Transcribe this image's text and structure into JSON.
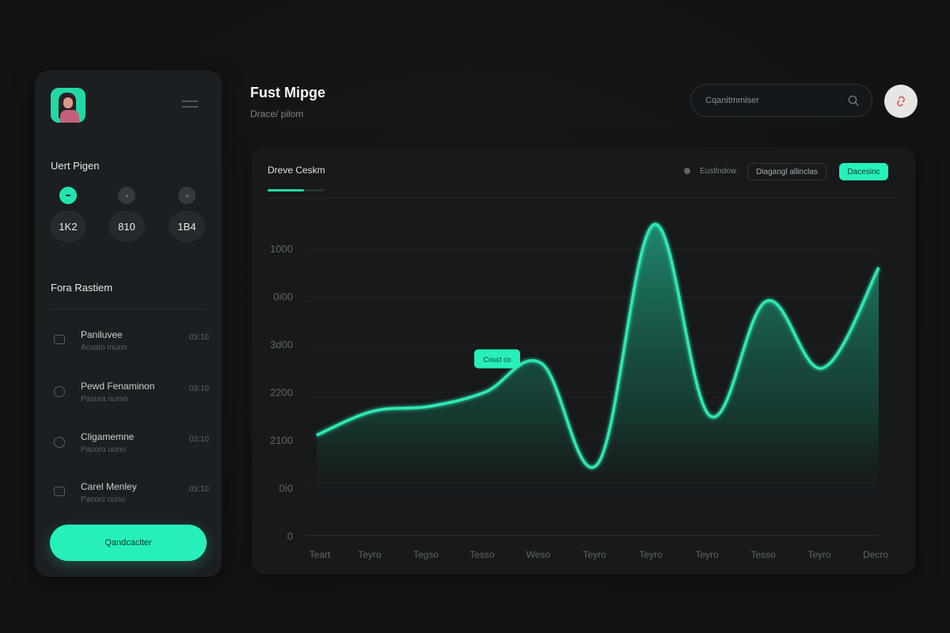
{
  "header": {
    "title": "Fust Mipge",
    "subtitle": "Drace/ pilom",
    "search_placeholder": "Cqanitmmiser"
  },
  "sidebar": {
    "section1_title": "Uert Pigen",
    "stats": [
      "1K2",
      "810",
      "1B4"
    ],
    "section2_title": "Fora Rastiem",
    "items": [
      {
        "label": "Paniluvee",
        "sub": "Acvato muon",
        "time": "03:10",
        "icon": "chat-icon"
      },
      {
        "label": "Pewd Fenaminon",
        "sub": "Pasura numo",
        "time": "03:10",
        "icon": "chat-icon"
      },
      {
        "label": "Cligamemne",
        "sub": "Pacoro uono",
        "time": "03:10",
        "icon": "clock-icon"
      },
      {
        "label": "Carel Menley",
        "sub": "Pacorc nuno",
        "time": "03:10",
        "icon": "document-icon"
      }
    ],
    "cta_label": "Qandcaclter"
  },
  "chart_card": {
    "title": "Dreve Ceskm",
    "legend_label": "Eustlndow",
    "filter_label": "Diagangl allinclas",
    "action_label": "Dacesinc",
    "tooltip": "Coucl co"
  },
  "colors": {
    "accent": "#27f0ba",
    "background": "#121314",
    "panel": "#1c1f22"
  },
  "chart_data": {
    "type": "area",
    "title": "Dreve Ceskm",
    "xlabel": "",
    "ylabel": "",
    "y_ticks": [
      "0",
      "0i0",
      "2100",
      "2200",
      "3d00",
      "0i00",
      "1000"
    ],
    "categories": [
      "Teart",
      "Teyro",
      "Tegso",
      "Tesso",
      "Weso",
      "Teyro",
      "Teyro",
      "Teyro",
      "Tesso",
      "Teyro",
      "Decro"
    ],
    "grid": true,
    "values": [
      2.1,
      2.6,
      2.7,
      3.0,
      3.6,
      1.5,
      6.5,
      2.5,
      4.9,
      3.5,
      5.6
    ]
  }
}
